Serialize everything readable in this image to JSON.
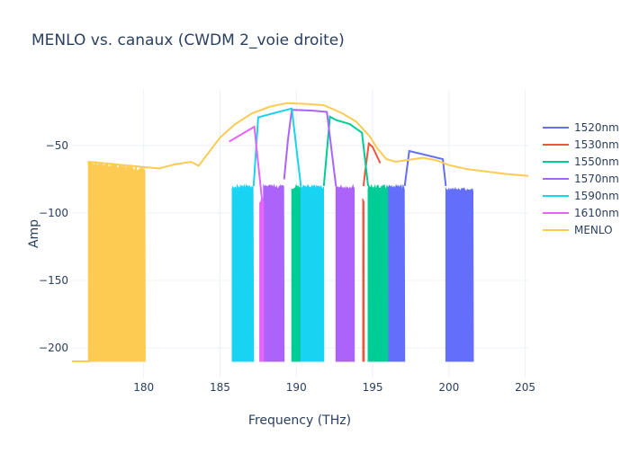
{
  "chart_data": {
    "type": "line",
    "title": "MENLO vs. canaux (CWDM 2_voie droite)",
    "xlabel": "Frequency (THz)",
    "ylabel": "Amp",
    "xlim": [
      175.3,
      205.2
    ],
    "ylim": [
      -222,
      -8.7
    ],
    "xticks": [
      180,
      185,
      190,
      195,
      200,
      205
    ],
    "yticks": [
      -50,
      -100,
      -150,
      -200
    ],
    "grid": true,
    "legend_position": "right",
    "noise_floor": -210,
    "series": [
      {
        "name": "1520nm",
        "color": "#636efa",
        "line": [
          [
            197.1,
            -80
          ],
          [
            197.4,
            -54
          ],
          [
            199.6,
            -60
          ],
          [
            199.8,
            -80
          ]
        ],
        "bands": [
          [
            196.0,
            197.1,
            -80
          ],
          [
            199.8,
            201.6,
            -82
          ]
        ]
      },
      {
        "name": "1530nm",
        "color": "#ef553b",
        "line": [
          [
            194.4,
            -80
          ],
          [
            194.5,
            -70
          ],
          [
            194.75,
            -48.5
          ],
          [
            195.0,
            -51
          ],
          [
            195.5,
            -63
          ]
        ],
        "bands": [
          [
            194.35,
            194.45,
            -90
          ]
        ]
      },
      {
        "name": "1550nm",
        "color": "#00cc96",
        "line": [
          [
            191.8,
            -80
          ],
          [
            192.2,
            -28.5
          ],
          [
            192.6,
            -31
          ],
          [
            193.5,
            -34
          ],
          [
            194.3,
            -40.5
          ],
          [
            194.7,
            -80
          ]
        ],
        "bands": [
          [
            189.7,
            190.3,
            -80
          ],
          [
            194.7,
            196.0,
            -80
          ]
        ]
      },
      {
        "name": "1570nm",
        "color": "#ab63fa",
        "line": [
          [
            189.2,
            -75
          ],
          [
            189.45,
            -46
          ],
          [
            189.7,
            -23.5
          ],
          [
            191.0,
            -24
          ],
          [
            192.0,
            -25
          ],
          [
            192.6,
            -80
          ]
        ],
        "bands": [
          [
            187.85,
            189.2,
            -80
          ],
          [
            192.6,
            193.8,
            -80
          ]
        ]
      },
      {
        "name": "1590nm",
        "color": "#19d3f3",
        "line": [
          [
            187.2,
            -80
          ],
          [
            187.5,
            -29
          ],
          [
            188.5,
            -26
          ],
          [
            189.7,
            -22.5
          ],
          [
            190.3,
            -80
          ]
        ],
        "bands": [
          [
            185.8,
            187.2,
            -80
          ],
          [
            190.3,
            191.8,
            -80
          ]
        ]
      },
      {
        "name": "1610nm",
        "color": "#e763fa",
        "line": [
          [
            185.6,
            -47
          ],
          [
            186.5,
            -41
          ],
          [
            187.25,
            -36
          ],
          [
            187.75,
            -90
          ]
        ],
        "bands": [
          [
            187.6,
            187.85,
            -90
          ]
        ]
      },
      {
        "name": "MENLO",
        "color": "#fecb52",
        "line": [
          [
            175.3,
            -210
          ],
          [
            176.4,
            -210
          ],
          [
            176.4,
            -62
          ],
          [
            180.1,
            -66
          ],
          [
            181,
            -67
          ],
          [
            182,
            -64
          ],
          [
            183.1,
            -62
          ],
          [
            183.6,
            -65
          ],
          [
            185,
            -44
          ],
          [
            186,
            -34
          ],
          [
            187.1,
            -26
          ],
          [
            188.3,
            -21
          ],
          [
            189.4,
            -18.5
          ],
          [
            190.5,
            -19
          ],
          [
            191.8,
            -20
          ],
          [
            193,
            -26
          ],
          [
            193.9,
            -32
          ],
          [
            194.8,
            -43
          ],
          [
            195.3,
            -52
          ],
          [
            195.9,
            -60
          ],
          [
            196.5,
            -62
          ],
          [
            197.1,
            -61
          ],
          [
            198.3,
            -59
          ],
          [
            199.2,
            -61
          ],
          [
            200.0,
            -64.5
          ],
          [
            201.2,
            -67.5
          ],
          [
            202.3,
            -69
          ],
          [
            203.7,
            -71
          ],
          [
            205.2,
            -72.5
          ]
        ],
        "bands": [
          [
            176.4,
            180.1,
            -62
          ]
        ]
      }
    ]
  }
}
